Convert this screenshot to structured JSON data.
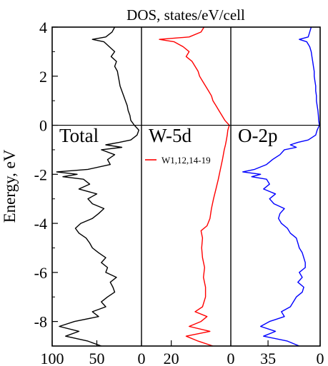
{
  "chart_data": {
    "type": "line",
    "title": "DOS, states/eV/cell",
    "ylabel": "Energy, eV",
    "ylim": [
      -9,
      4
    ],
    "yticks": [
      4,
      2,
      0,
      -2,
      -4,
      -6,
      -8
    ],
    "fermi_level": 0,
    "panels": [
      {
        "label": "Total",
        "color": "#000000",
        "xlim": [
          100,
          0
        ],
        "xticks": [
          100,
          50,
          0
        ],
        "xtick_labels": [
          "100",
          "50",
          "0"
        ],
        "series": [
          {
            "name": "",
            "energy": [
              4.0,
              3.8,
              3.6,
              3.5,
              3.4,
              3.2,
              3.0,
              2.8,
              2.6,
              2.4,
              2.2,
              2.0,
              1.8,
              1.6,
              1.4,
              1.2,
              1.0,
              0.8,
              0.6,
              0.4,
              0.2,
              0.0,
              -0.2,
              -0.4,
              -0.6,
              -0.7,
              -0.8,
              -0.9,
              -1.0,
              -1.2,
              -1.4,
              -1.6,
              -1.8,
              -1.9,
              -2.0,
              -2.1,
              -2.2,
              -2.4,
              -2.6,
              -2.8,
              -3.0,
              -3.2,
              -3.4,
              -3.6,
              -3.8,
              -4.0,
              -4.2,
              -4.4,
              -4.6,
              -4.8,
              -5.0,
              -5.2,
              -5.4,
              -5.6,
              -5.8,
              -6.0,
              -6.2,
              -6.4,
              -6.6,
              -6.8,
              -7.0,
              -7.2,
              -7.4,
              -7.6,
              -7.8,
              -8.0,
              -8.2,
              -8.4,
              -8.6,
              -8.8,
              -9.0
            ],
            "dos": [
              30,
              33,
              40,
              55,
              42,
              36,
              30,
              34,
              28,
              30,
              27,
              26,
              25,
              24,
              22,
              20,
              18,
              16,
              15,
              13,
              12,
              8,
              3,
              5,
              12,
              25,
              40,
              22,
              45,
              30,
              38,
              35,
              60,
              95,
              72,
              88,
              65,
              58,
              70,
              50,
              60,
              55,
              42,
              48,
              55,
              68,
              74,
              70,
              62,
              58,
              55,
              48,
              40,
              45,
              38,
              40,
              28,
              35,
              32,
              30,
              38,
              45,
              40,
              55,
              48,
              75,
              92,
              70,
              85,
              60,
              45
            ]
          }
        ]
      },
      {
        "label": "W-5d",
        "color": "#ff0000",
        "xlim": [
          30,
          0
        ],
        "xticks": [
          20,
          0
        ],
        "xtick_labels": [
          "20",
          "0"
        ],
        "legend": "W1,12,14-19",
        "series": [
          {
            "name": "W1,12,14-19",
            "energy": [
              4.0,
              3.8,
              3.6,
              3.5,
              3.4,
              3.2,
              3.0,
              2.8,
              2.6,
              2.4,
              2.2,
              2.0,
              1.8,
              1.6,
              1.4,
              1.2,
              1.0,
              0.8,
              0.6,
              0.4,
              0.2,
              0.0,
              -0.2,
              -0.4,
              -0.6,
              -0.8,
              -1.0,
              -1.4,
              -1.8,
              -2.2,
              -2.6,
              -3.0,
              -3.4,
              -3.8,
              -4.1,
              -4.3,
              -4.6,
              -5.0,
              -5.4,
              -5.8,
              -6.2,
              -6.6,
              -7.0,
              -7.4,
              -7.6,
              -7.8,
              -8.0,
              -8.2,
              -8.4,
              -8.6,
              -8.8,
              -9.0
            ],
            "dos": [
              9,
              10,
              14,
              24,
              19,
              16,
              14,
              15,
              13,
              12,
              11,
              10.5,
              9.5,
              8.5,
              7.5,
              6.5,
              6,
              5,
              4,
              3,
              2,
              0.5,
              1,
              1.2,
              1.5,
              1.8,
              2.2,
              2.8,
              3.5,
              4.2,
              5.0,
              5.8,
              6.5,
              7,
              8,
              10,
              9.5,
              9.8,
              9.5,
              8.8,
              9.2,
              8.5,
              8.5,
              9.5,
              12,
              8,
              10,
              14,
              7,
              15,
              11,
              6
            ]
          }
        ]
      },
      {
        "label": "O-2p",
        "color": "#0000ff",
        "xlim": [
          60,
          0
        ],
        "xticks": [
          35,
          0
        ],
        "xtick_labels": [
          "35",
          "0"
        ],
        "series": [
          {
            "name": "",
            "energy": [
              4.0,
              3.8,
              3.6,
              3.5,
              3.4,
              3.2,
              3.0,
              2.8,
              2.6,
              2.4,
              2.2,
              2.0,
              1.8,
              1.6,
              1.4,
              1.2,
              1.0,
              0.8,
              0.6,
              0.4,
              0.2,
              0.0,
              -0.2,
              -0.4,
              -0.6,
              -0.7,
              -0.8,
              -0.9,
              -1.0,
              -1.2,
              -1.4,
              -1.6,
              -1.8,
              -1.9,
              -2.0,
              -2.1,
              -2.2,
              -2.4,
              -2.6,
              -2.8,
              -3.0,
              -3.2,
              -3.4,
              -3.6,
              -3.8,
              -4.0,
              -4.2,
              -4.4,
              -4.6,
              -4.8,
              -5.0,
              -5.2,
              -5.4,
              -5.6,
              -5.8,
              -6.0,
              -6.2,
              -6.4,
              -6.6,
              -6.8,
              -7.0,
              -7.2,
              -7.4,
              -7.6,
              -7.8,
              -8.0,
              -8.2,
              -8.4,
              -8.6,
              -8.8,
              -9.0
            ],
            "dos": [
              6,
              7,
              8,
              14,
              9,
              7,
              6,
              5.5,
              5,
              4.5,
              4,
              4,
              3.5,
              3,
              3,
              2.5,
              2.5,
              2,
              1.5,
              1.2,
              1,
              0.5,
              2,
              3,
              8,
              15,
              20,
              16,
              24,
              27,
              32,
              36,
              44,
              52,
              40,
              46,
              36,
              34,
              38,
              30,
              34,
              31,
              24,
              27,
              28,
              26,
              22,
              20,
              16,
              15,
              14,
              12,
              11,
              10,
              10,
              14,
              12,
              15,
              11,
              12,
              16,
              18,
              20,
              26,
              24,
              34,
              40,
              30,
              38,
              22,
              14
            ]
          }
        ]
      }
    ]
  }
}
